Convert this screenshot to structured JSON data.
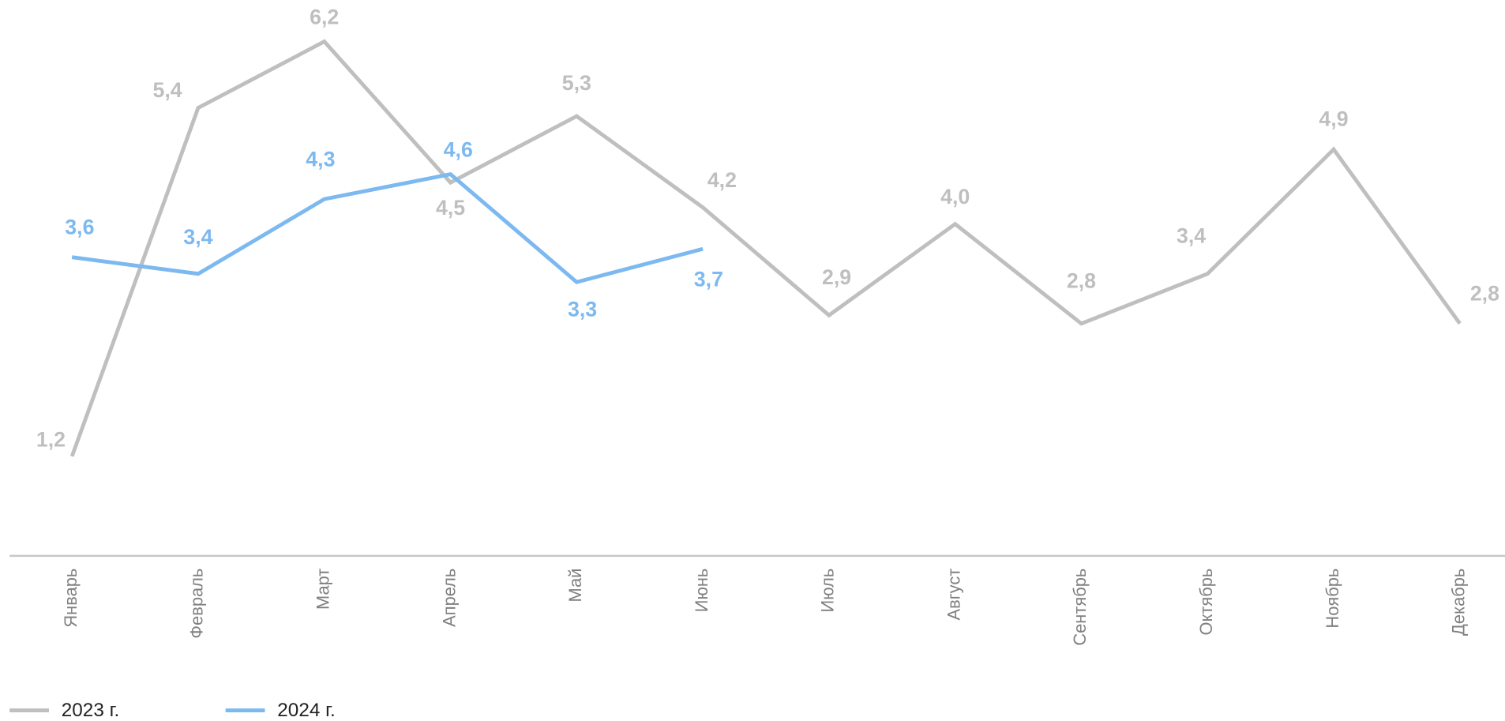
{
  "chart_data": {
    "type": "line",
    "categories": [
      "Январь",
      "Февраль",
      "Март",
      "Апрель",
      "Май",
      "Июнь",
      "Июль",
      "Август",
      "Сентябрь",
      "Октябрь",
      "Ноябрь",
      "Декабрь"
    ],
    "series": [
      {
        "name": "2023 г.",
        "color": "#bfbfbf",
        "values": [
          1.2,
          5.4,
          6.2,
          4.5,
          5.3,
          4.2,
          2.9,
          4.0,
          2.8,
          3.4,
          4.9,
          2.8
        ],
        "value_labels": [
          "1,2",
          "5,4",
          "6,2",
          "4,5",
          "5,3",
          "4,2",
          "2,9",
          "4,0",
          "2,8",
          "3,4",
          "4,9",
          "2,8"
        ]
      },
      {
        "name": "2024 г.",
        "color": "#7cb9f0",
        "values": [
          3.6,
          3.4,
          4.3,
          4.6,
          3.3,
          3.7,
          null,
          null,
          null,
          null,
          null,
          null
        ],
        "value_labels": [
          "3,6",
          "3,4",
          "4,3",
          "4,6",
          "3,3",
          "3,7",
          null,
          null,
          null,
          null,
          null,
          null
        ]
      }
    ],
    "ylim": [
      0,
      6.7
    ],
    "legend": "bottom-left"
  }
}
